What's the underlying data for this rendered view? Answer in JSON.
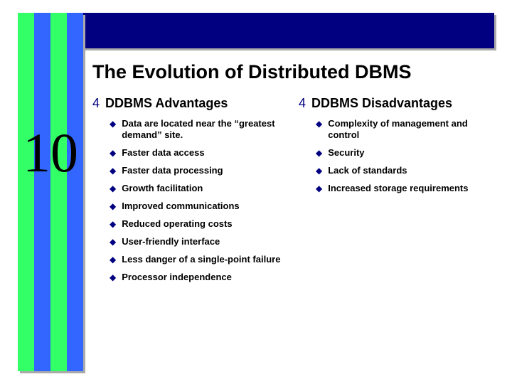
{
  "colors": {
    "navy": "#000080",
    "green": "#33ff66",
    "blue": "#3366ff",
    "shadow": "#aaaaaa",
    "text": "#000000",
    "background": "#ffffff"
  },
  "chapter_number": "10",
  "title": "The Evolution of Distributed DBMS",
  "bullets": {
    "level1_glyph": "4",
    "level2_glyph": "◆"
  },
  "columns": [
    {
      "heading": "DDBMS Advantages",
      "items": [
        "Data are located near the “greatest demand” site.",
        "Faster data access",
        "Faster data processing",
        "Growth facilitation",
        "Improved communications",
        "Reduced operating costs",
        "User-friendly interface",
        "Less danger of a single-point failure",
        "Processor independence"
      ]
    },
    {
      "heading": "DDBMS Disadvantages",
      "items": [
        "Complexity of management and control",
        "Security",
        "Lack of standards",
        "Increased storage requirements"
      ]
    }
  ]
}
